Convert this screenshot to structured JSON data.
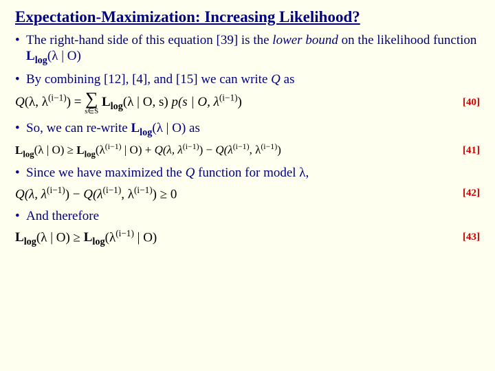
{
  "colors": {
    "background": "#fffff0",
    "text": "#000080",
    "equation": "#000000",
    "eqnum": "#cc0000"
  },
  "typography": {
    "title_fontsize": 23,
    "body_fontsize": 19,
    "eq_fontsize": 19,
    "eqnum_fontsize": 15,
    "font_body": "Times New Roman",
    "font_symbol": "Comic Sans MS"
  },
  "title": "Expectation-Maximization: Increasing Likelihood?",
  "bullets": {
    "b1_a": "The right-hand side of this equation [39] is the ",
    "b1_b": "lower bound",
    "b1_c": " on the likelihood function ",
    "b1_d": "(λ | O)",
    "b2_a": "By combining [12], [4], and [15] we can write ",
    "b2_b": "Q",
    "b2_c": " as",
    "b3_a": "So, we can re-write ",
    "b3_b": "(λ | O) as",
    "b4_a": "Since we have maximized the ",
    "b4_b": "Q",
    "b4_c": " function for model λ,",
    "b5": "And therefore"
  },
  "Llog_label": "L",
  "Llog_sub": "log",
  "equations": {
    "eq40": {
      "lhs_Q": "Q",
      "lhs_args": "(λ, λ",
      "lhs_sup": "(i−1)",
      "lhs_close": ") = ",
      "sum_lower": "s∈S",
      "term1_args": "(λ | O, s) ",
      "term2": "p(s | O, λ",
      "term2_sup": "(i−1)",
      "term2_close": ")",
      "num": "[40]"
    },
    "eq41": {
      "t1_args": "(λ | O) ≥ ",
      "t2_args": "(λ",
      "sup": "(i−1)",
      "t2_close": " | O) + ",
      "Q1": "Q(λ, λ",
      "Q1_close": ") − ",
      "Q2": "Q(λ",
      "Q2_mid": ", λ",
      "Q2_close": ")",
      "num": "[41]"
    },
    "eq42": {
      "Q1": "Q(λ, λ",
      "sup": "(i−1)",
      "Q1_close": ") − ",
      "Q2": "Q(λ",
      "Q2_mid": ", λ",
      "Q2_close": ") ≥ 0",
      "num": "[42]"
    },
    "eq43": {
      "t1_args": "(λ | O) ≥ ",
      "t2_args": "(λ",
      "sup": "(i−1)",
      "t2_close": " | O)",
      "num": "[43]"
    }
  }
}
